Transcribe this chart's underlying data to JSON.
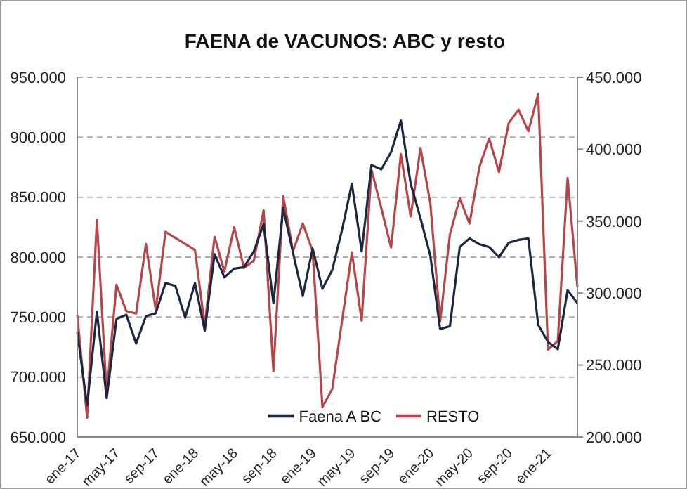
{
  "chart_data": {
    "type": "line",
    "title": "FAENA de VACUNOS: ABC y resto",
    "categories": [
      "ene-17",
      null,
      null,
      null,
      "may-17",
      null,
      null,
      null,
      "sep-17",
      null,
      null,
      null,
      "ene-18",
      null,
      null,
      null,
      "may-18",
      null,
      null,
      null,
      "sep-18",
      null,
      null,
      null,
      "ene-19",
      null,
      null,
      null,
      "may-19",
      null,
      null,
      null,
      "sep-19",
      null,
      null,
      null,
      "ene-20",
      null,
      null,
      null,
      "may-20",
      null,
      null,
      null,
      "sep-20",
      null,
      null,
      null,
      "ene-21",
      null,
      null,
      null
    ],
    "series": [
      {
        "name": "RESTO",
        "color": "#b5474a",
        "values": [
          752000,
          666000,
          831000,
          686000,
          777000,
          755000,
          753000,
          811000,
          756000,
          821000,
          816000,
          811000,
          806000,
          743000,
          817000,
          788000,
          825000,
          791000,
          797000,
          839000,
          705000,
          851000,
          805000,
          828000,
          805000,
          675000,
          690000,
          747000,
          804000,
          747000,
          873000,
          841000,
          808000,
          886000,
          834000,
          891000,
          845000,
          746000,
          819000,
          849000,
          828000,
          875000,
          899000,
          871000,
          912000,
          923000,
          905000,
          936000,
          723000,
          730000,
          866000,
          775000
        ]
      },
      {
        "name": "Faena A BC",
        "color": "#1c2740",
        "axis": "y2",
        "values": [
          273000,
          222000,
          287000,
          227000,
          282000,
          285000,
          265000,
          284000,
          286000,
          307000,
          305000,
          283000,
          307000,
          274000,
          327000,
          311000,
          317000,
          318000,
          329000,
          348000,
          293000,
          359000,
          328000,
          298000,
          331000,
          303000,
          316000,
          344000,
          376000,
          329000,
          389000,
          386000,
          398000,
          420000,
          376000,
          352000,
          326000,
          275000,
          277000,
          332000,
          338000,
          334000,
          332000,
          325000,
          335000,
          337000,
          338000,
          278000,
          266000,
          261000,
          302000,
          293000
        ]
      }
    ],
    "ylim": [
      650000,
      950000
    ],
    "yticks": [
      {
        "value": 650000,
        "label": "650.000"
      },
      {
        "value": 700000,
        "label": "700.000"
      },
      {
        "value": 750000,
        "label": "750.000"
      },
      {
        "value": 800000,
        "label": "800.000"
      },
      {
        "value": 850000,
        "label": "850.000"
      },
      {
        "value": 900000,
        "label": "900.000"
      },
      {
        "value": 950000,
        "label": "950.000"
      }
    ],
    "y2lim": [
      200000,
      450000
    ],
    "y2ticks": [
      {
        "value": 200000,
        "label": "200.000"
      },
      {
        "value": 250000,
        "label": "250.000"
      },
      {
        "value": 300000,
        "label": "300.000"
      },
      {
        "value": 350000,
        "label": "350.000"
      },
      {
        "value": 400000,
        "label": "400.000"
      },
      {
        "value": 450000,
        "label": "450.000"
      }
    ],
    "grid": "y",
    "legend": "bottom",
    "marker": "none",
    "line_style": "solid"
  }
}
